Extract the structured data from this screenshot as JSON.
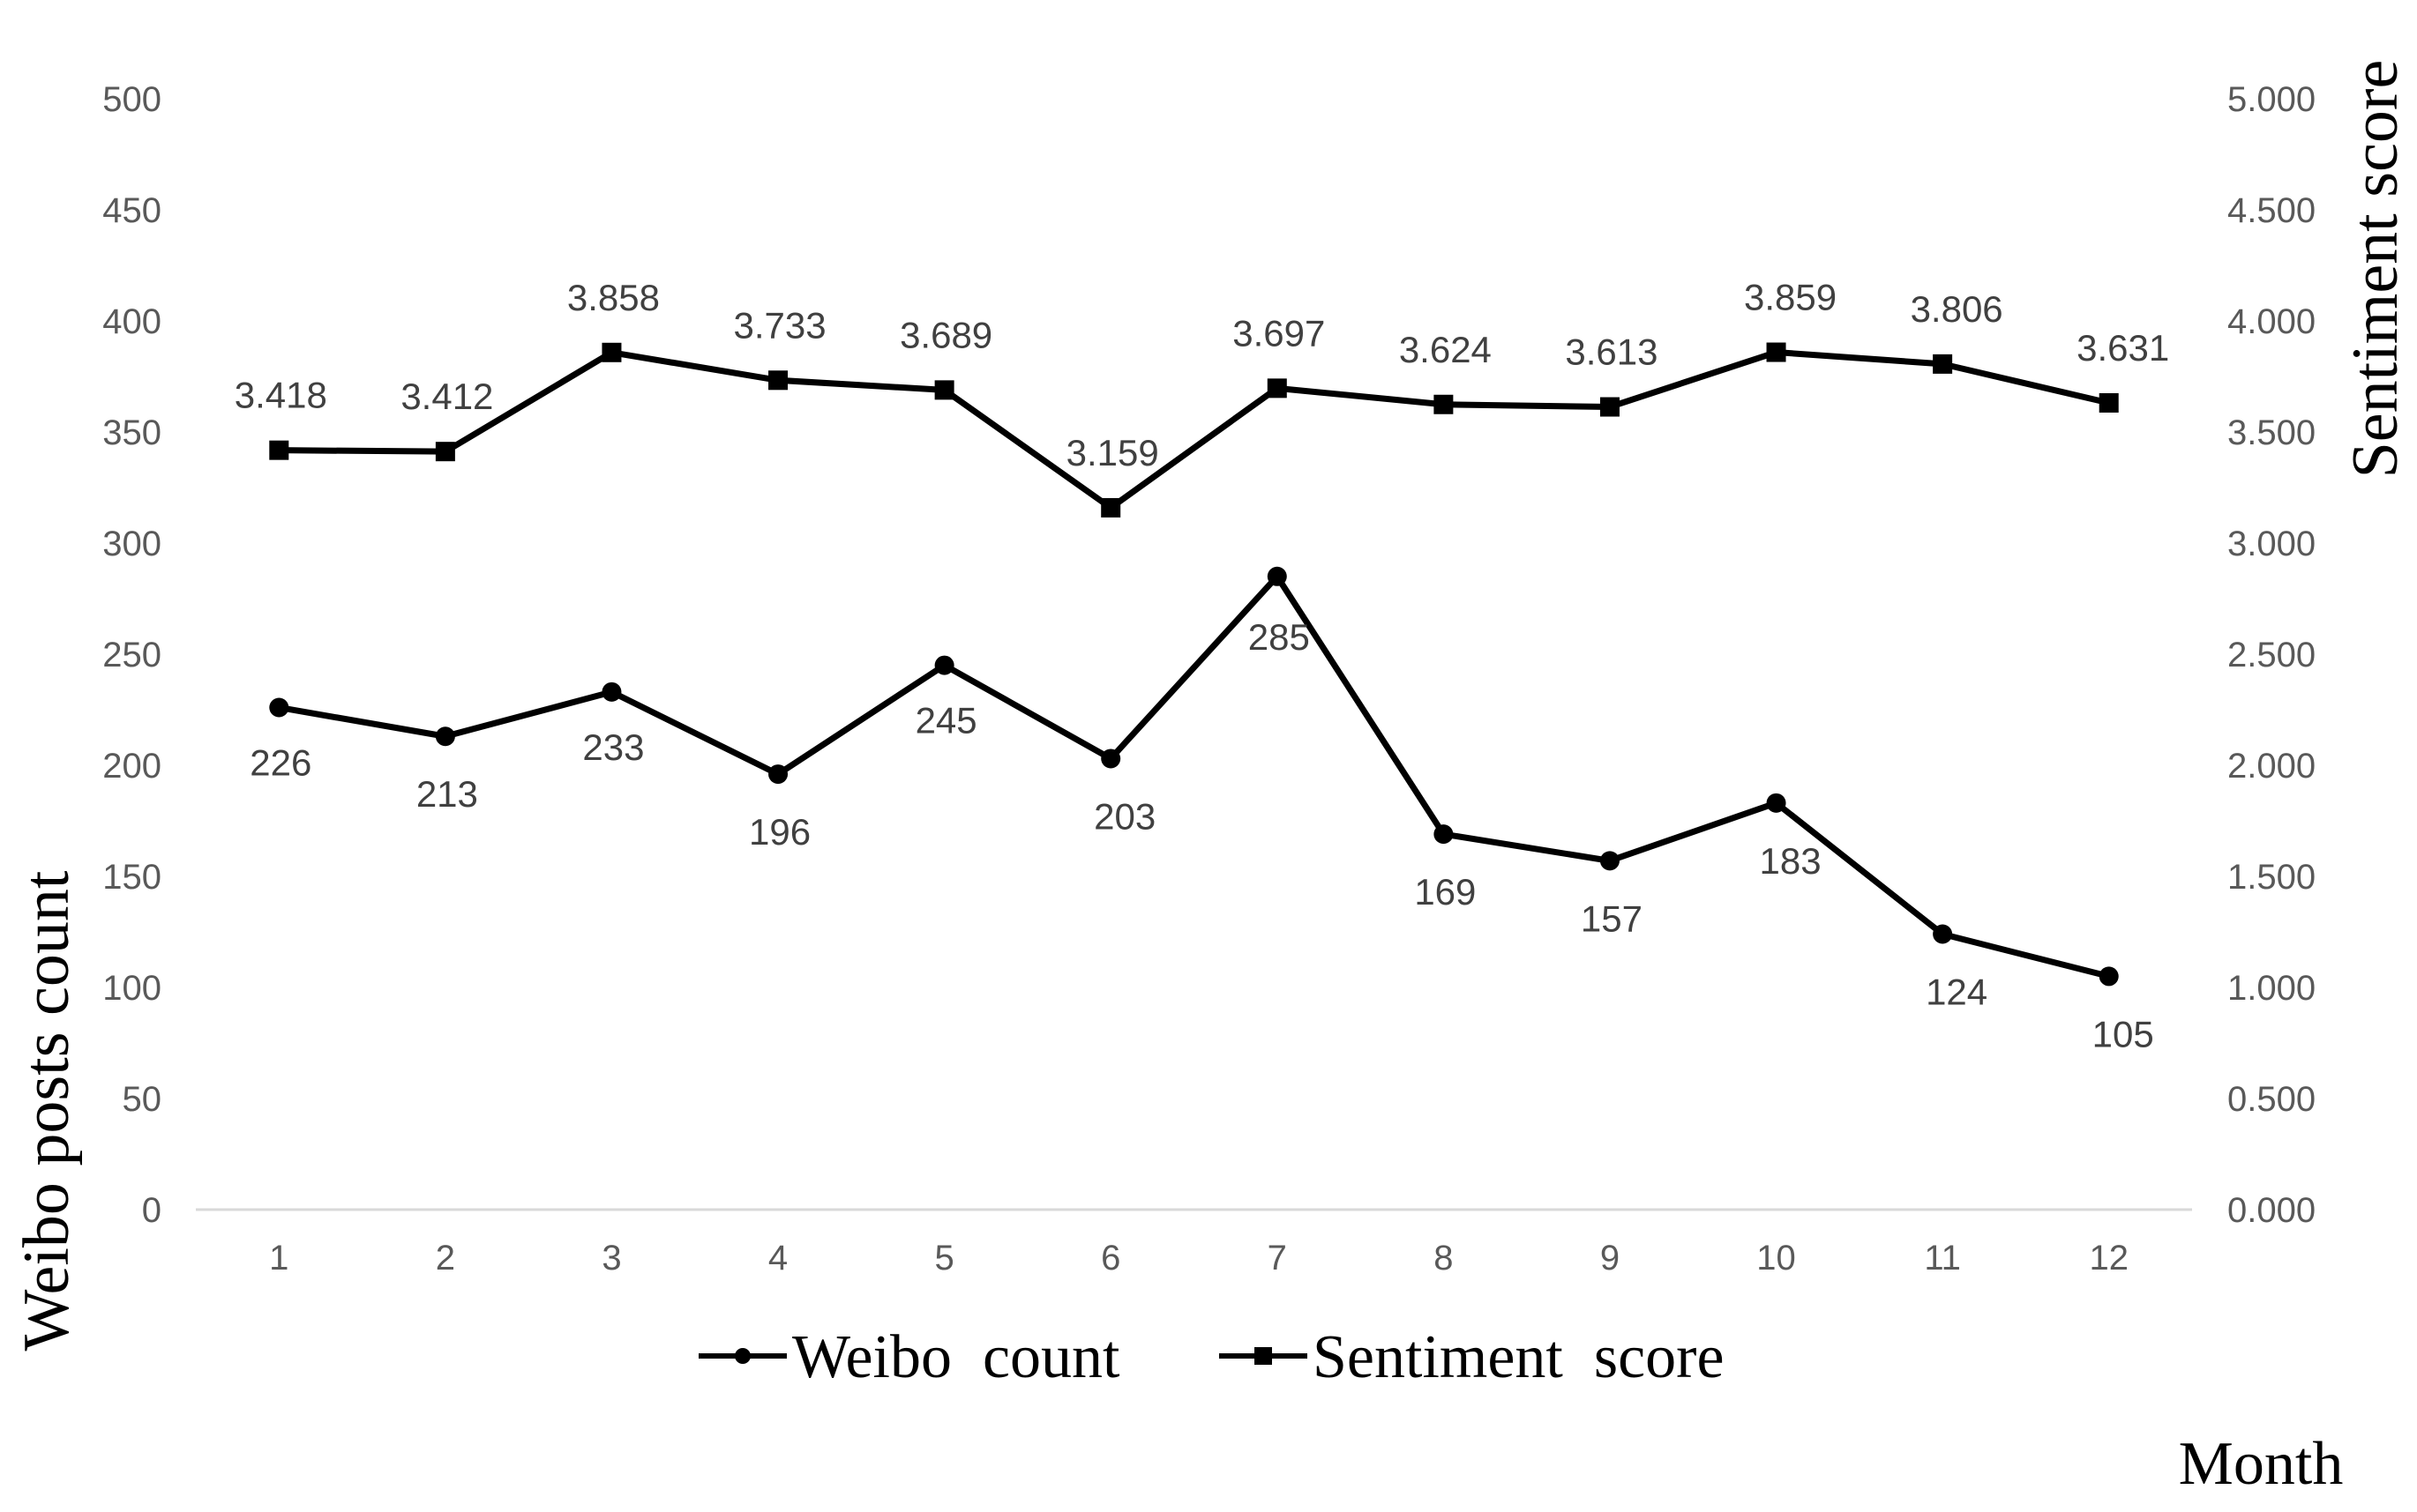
{
  "chart_data": {
    "type": "line",
    "xlabel": "Month",
    "ylabel": "Weibo posts count",
    "y2label": "Sentiment score",
    "categories": [
      "1",
      "2",
      "3",
      "4",
      "5",
      "6",
      "7",
      "8",
      "9",
      "10",
      "11",
      "12"
    ],
    "ylim": [
      0,
      500
    ],
    "y_ticks": [
      "0",
      "50",
      "100",
      "150",
      "200",
      "250",
      "300",
      "350",
      "400",
      "450",
      "500"
    ],
    "y2lim": [
      0,
      5
    ],
    "y2_ticks": [
      "0.000",
      "0.500",
      "1.000",
      "1.500",
      "2.000",
      "2.500",
      "3.000",
      "3.500",
      "4.000",
      "4.500",
      "5.000"
    ],
    "grid": false,
    "legend_position": "bottom-center",
    "series": [
      {
        "name": "Weibo  count",
        "axis": "left",
        "marker": "circle",
        "color": "#000000",
        "values": [
          226,
          213,
          233,
          196,
          245,
          203,
          285,
          169,
          157,
          183,
          124,
          105
        ],
        "labels": [
          "226",
          "213",
          "233",
          "196",
          "245",
          "203",
          "285",
          "169",
          "157",
          "183",
          "124",
          "105"
        ]
      },
      {
        "name": "Sentiment  score",
        "axis": "right",
        "marker": "square",
        "color": "#000000",
        "values": [
          3.418,
          3.412,
          3.858,
          3.733,
          3.689,
          3.159,
          3.697,
          3.624,
          3.613,
          3.859,
          3.806,
          3.631
        ],
        "labels": [
          "3.418",
          "3.412",
          "3.858",
          "3.733",
          "3.689",
          "3.159",
          "3.697",
          "3.624",
          "3.613",
          "3.859",
          "3.806",
          "3.631"
        ]
      }
    ]
  }
}
